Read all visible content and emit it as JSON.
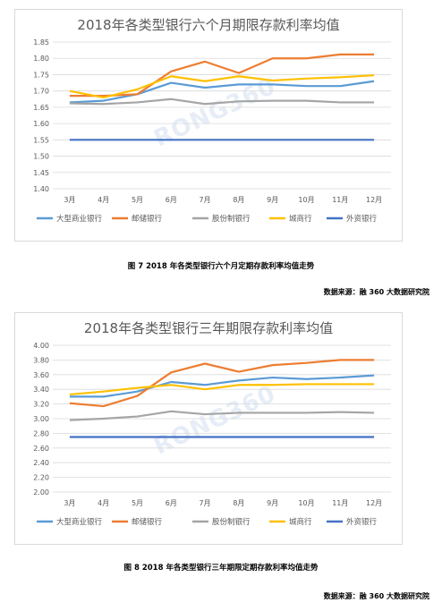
{
  "colors": {
    "大型商业银行": "#5b9bd5",
    "邮储银行": "#ed7d31",
    "股份制银行": "#a5a5a5",
    "城商行": "#ffc000",
    "外资银行": "#4472c4"
  },
  "chart_data": [
    {
      "type": "line",
      "title": "2018年各类型银行六个月期限存款利率均值",
      "categories": [
        "3月",
        "4月",
        "5月",
        "6月",
        "7月",
        "8月",
        "9月",
        "10月",
        "11月",
        "12月"
      ],
      "ylim": [
        1.4,
        1.85
      ],
      "yticks": [
        "1.40",
        "1.45",
        "1.50",
        "1.55",
        "1.60",
        "1.65",
        "1.70",
        "1.75",
        "1.80",
        "1.85"
      ],
      "grid": true,
      "legend": "bottom",
      "series": [
        {
          "name": "大型商业银行",
          "values": [
            1.665,
            1.67,
            1.69,
            1.725,
            1.71,
            1.72,
            1.72,
            1.715,
            1.715,
            1.73
          ]
        },
        {
          "name": "邮储银行",
          "values": [
            1.685,
            1.685,
            1.69,
            1.76,
            1.79,
            1.755,
            1.8,
            1.8,
            1.812,
            1.812
          ]
        },
        {
          "name": "股份制银行",
          "values": [
            1.662,
            1.66,
            1.665,
            1.675,
            1.66,
            1.668,
            1.67,
            1.67,
            1.665,
            1.665
          ]
        },
        {
          "name": "城商行",
          "values": [
            1.7,
            1.68,
            1.705,
            1.745,
            1.73,
            1.745,
            1.732,
            1.738,
            1.742,
            1.748
          ]
        },
        {
          "name": "外资银行",
          "values": [
            1.55,
            1.55,
            1.55,
            1.55,
            1.55,
            1.55,
            1.55,
            1.55,
            1.55,
            1.55
          ]
        }
      ],
      "caption": "图 7  2018 年各类型银行六个月定期存款利率均值走势",
      "source": "数据来源：融 360 大数据研究院",
      "watermark": "RONG360"
    },
    {
      "type": "line",
      "title": "2018年各类型银行三年期限存款利率均值",
      "categories": [
        "3月",
        "4月",
        "5月",
        "6月",
        "7月",
        "8月",
        "9月",
        "10月",
        "11月",
        "12月"
      ],
      "ylim": [
        2.0,
        4.0
      ],
      "yticks": [
        "2.00",
        "2.20",
        "2.40",
        "2.60",
        "2.80",
        "3.00",
        "3.20",
        "3.40",
        "3.60",
        "3.80",
        "4.00"
      ],
      "grid": true,
      "legend": "bottom",
      "series": [
        {
          "name": "大型商业银行",
          "values": [
            3.3,
            3.3,
            3.37,
            3.5,
            3.46,
            3.52,
            3.56,
            3.54,
            3.56,
            3.59
          ]
        },
        {
          "name": "邮储银行",
          "values": [
            3.21,
            3.17,
            3.31,
            3.63,
            3.75,
            3.64,
            3.73,
            3.76,
            3.8,
            3.8
          ]
        },
        {
          "name": "股份制银行",
          "values": [
            2.98,
            3.0,
            3.03,
            3.1,
            3.06,
            3.08,
            3.08,
            3.08,
            3.09,
            3.08
          ]
        },
        {
          "name": "城商行",
          "values": [
            3.33,
            3.37,
            3.42,
            3.46,
            3.4,
            3.46,
            3.46,
            3.47,
            3.47,
            3.47
          ]
        },
        {
          "name": "外资银行",
          "values": [
            2.75,
            2.75,
            2.75,
            2.75,
            2.75,
            2.75,
            2.75,
            2.75,
            2.75,
            2.75
          ]
        }
      ],
      "caption": "图 8  2018 年各类型银行三年期限定期存款利率均值走势",
      "source": "数据来源：融 360 大数据研究院",
      "watermark": "RONG360"
    }
  ]
}
